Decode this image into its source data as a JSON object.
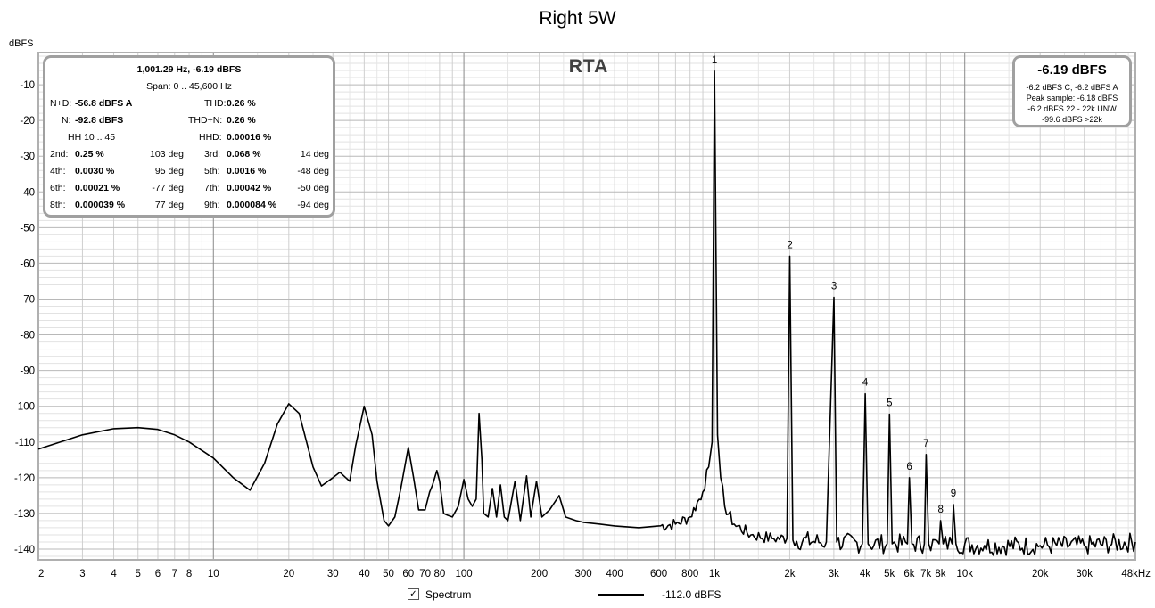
{
  "title": "Right 5W",
  "ylabel": "dBFS",
  "rta_label": "RTA",
  "legend": {
    "spectrum_label": "Spectrum",
    "spectrum_checked": true,
    "level_label": "-112.0 dBFS"
  },
  "info_left": {
    "header": "1,001.29 Hz, -6.19 dBFS",
    "span": "Span: 0 .. 45,600 Hz",
    "nd_label": "N+D:",
    "nd_value": "-56.8 dBFS A",
    "thd_label": "THD:",
    "thd_value": "0.26 %",
    "n_label": "N:",
    "n_value": "-92.8 dBFS",
    "thdn_label": "THD+N:",
    "thdn_value": "0.26 %",
    "hh_label": "HH 10 .. 45",
    "hhd_label": "HHD:",
    "hhd_value": "0.00016 %",
    "harmonics": [
      {
        "label": "2nd:",
        "value": "0.25 %",
        "phase": "103 deg"
      },
      {
        "label": "3rd:",
        "value": "0.068 %",
        "phase": "14 deg"
      },
      {
        "label": "4th:",
        "value": "0.0030 %",
        "phase": "95 deg"
      },
      {
        "label": "5th:",
        "value": "0.0016 %",
        "phase": "-48 deg"
      },
      {
        "label": "6th:",
        "value": "0.00021 %",
        "phase": "-77 deg"
      },
      {
        "label": "7th:",
        "value": "0.00042 %",
        "phase": "-50 deg"
      },
      {
        "label": "8th:",
        "value": "0.000039 %",
        "phase": "77 deg"
      },
      {
        "label": "9th:",
        "value": "0.000084 %",
        "phase": "-94 deg"
      }
    ]
  },
  "info_right": {
    "level": "-6.19 dBFS",
    "lines": [
      "-6.2 dBFS C, -6.2 dBFS A",
      "Peak sample: -6.18 dBFS",
      "-6.2 dBFS 22 - 22k UNW",
      "-99.6 dBFS >22k"
    ]
  },
  "colors": {
    "trace": "#000000",
    "grid": "#d0d0d0",
    "grid_major": "#a0a0a0",
    "frame": "#b0b0b0",
    "infobox_border": "#a0a0a0"
  },
  "chart_data": {
    "type": "line",
    "title": "Right 5W",
    "ylabel": "dBFS",
    "xscale": "log",
    "xlim": [
      2,
      48000
    ],
    "ylim": [
      -143,
      -1
    ],
    "grid": true,
    "yticks": [
      -10,
      -20,
      -30,
      -40,
      -50,
      -60,
      -70,
      -80,
      -90,
      -100,
      -110,
      -120,
      -130,
      -140
    ],
    "xticks": [
      {
        "v": 2,
        "label": "2"
      },
      {
        "v": 3,
        "label": "3"
      },
      {
        "v": 4,
        "label": "4"
      },
      {
        "v": 5,
        "label": "5"
      },
      {
        "v": 6,
        "label": "6"
      },
      {
        "v": 7,
        "label": "7"
      },
      {
        "v": 8,
        "label": "8"
      },
      {
        "v": 10,
        "label": "10"
      },
      {
        "v": 20,
        "label": "20"
      },
      {
        "v": 30,
        "label": "30"
      },
      {
        "v": 40,
        "label": "40"
      },
      {
        "v": 50,
        "label": "50"
      },
      {
        "v": 60,
        "label": "60"
      },
      {
        "v": 70,
        "label": "70"
      },
      {
        "v": 80,
        "label": "80"
      },
      {
        "v": 100,
        "label": "100"
      },
      {
        "v": 200,
        "label": "200"
      },
      {
        "v": 300,
        "label": "300"
      },
      {
        "v": 400,
        "label": "400"
      },
      {
        "v": 600,
        "label": "600"
      },
      {
        "v": 800,
        "label": "800"
      },
      {
        "v": 1000,
        "label": "1k"
      },
      {
        "v": 2000,
        "label": "2k"
      },
      {
        "v": 3000,
        "label": "3k"
      },
      {
        "v": 4000,
        "label": "4k"
      },
      {
        "v": 5000,
        "label": "5k"
      },
      {
        "v": 6000,
        "label": "6k"
      },
      {
        "v": 7000,
        "label": "7k"
      },
      {
        "v": 8000,
        "label": "8k"
      },
      {
        "v": 10000,
        "label": "10k"
      },
      {
        "v": 20000,
        "label": "20k"
      },
      {
        "v": 30000,
        "label": "30k"
      },
      {
        "v": 48000,
        "label": "48kHz"
      }
    ],
    "series": [
      {
        "points": [
          [
            2,
            -112
          ],
          [
            3,
            -108
          ],
          [
            4,
            -106.3
          ],
          [
            5,
            -106
          ],
          [
            6,
            -106.5
          ],
          [
            7,
            -108
          ],
          [
            8,
            -110
          ],
          [
            10,
            -114.5
          ],
          [
            12,
            -120
          ],
          [
            14,
            -123.5
          ],
          [
            16,
            -116
          ],
          [
            18,
            -105
          ],
          [
            20,
            -99.3
          ],
          [
            22,
            -102
          ],
          [
            25,
            -117
          ],
          [
            27,
            -122.3
          ],
          [
            30,
            -120
          ],
          [
            32,
            -118.5
          ],
          [
            35,
            -121
          ],
          [
            37,
            -111
          ],
          [
            40,
            -100
          ],
          [
            43,
            -108
          ],
          [
            45,
            -121
          ],
          [
            48,
            -132
          ],
          [
            50,
            -133.5
          ],
          [
            53,
            -131
          ],
          [
            56,
            -123
          ],
          [
            60,
            -111.5
          ],
          [
            63,
            -120
          ],
          [
            66,
            -129
          ],
          [
            70,
            -129
          ],
          [
            73,
            -124
          ],
          [
            75,
            -122
          ],
          [
            78,
            -118
          ],
          [
            80,
            -121
          ],
          [
            83,
            -130
          ],
          [
            86,
            -130.5
          ],
          [
            90,
            -131
          ],
          [
            95,
            -128
          ],
          [
            100,
            -120.5
          ],
          [
            104,
            -126
          ],
          [
            108,
            -128
          ],
          [
            112,
            -126
          ],
          [
            115,
            -102
          ],
          [
            118,
            -115
          ],
          [
            120,
            -130
          ],
          [
            125,
            -131
          ],
          [
            130,
            -123
          ],
          [
            135,
            -131
          ],
          [
            140,
            -122
          ],
          [
            145,
            -131
          ],
          [
            150,
            -132
          ],
          [
            160,
            -121
          ],
          [
            168,
            -132
          ],
          [
            178,
            -119.5
          ],
          [
            185,
            -131
          ],
          [
            195,
            -121
          ],
          [
            205,
            -131
          ],
          [
            220,
            -129
          ],
          [
            240,
            -125
          ],
          [
            255,
            -131
          ],
          [
            280,
            -132
          ],
          [
            300,
            -132.5
          ],
          [
            350,
            -133
          ],
          [
            400,
            -133.5
          ],
          [
            500,
            -134
          ],
          [
            600,
            -133.5
          ],
          [
            700,
            -133
          ],
          [
            800,
            -131
          ],
          [
            900,
            -124
          ],
          [
            950,
            -117
          ],
          [
            980,
            -110
          ],
          [
            1001.29,
            -6.19
          ],
          [
            1030,
            -108
          ],
          [
            1060,
            -120
          ],
          [
            1100,
            -128
          ],
          [
            1200,
            -133
          ],
          [
            1400,
            -136
          ],
          [
            1700,
            -137
          ],
          [
            1950,
            -137
          ],
          [
            2002,
            -58
          ],
          [
            2060,
            -137.5
          ],
          [
            2800,
            -138
          ],
          [
            3004,
            -69.5
          ],
          [
            3080,
            -138
          ],
          [
            3900,
            -138.5
          ],
          [
            4005,
            -96.5
          ],
          [
            4110,
            -138.5
          ],
          [
            4900,
            -138.5
          ],
          [
            5006,
            -102.2
          ],
          [
            5130,
            -138.5
          ],
          [
            5900,
            -138.5
          ],
          [
            6008,
            -120
          ],
          [
            6150,
            -138.5
          ],
          [
            6900,
            -138.5
          ],
          [
            7009,
            -113.5
          ],
          [
            7180,
            -138.5
          ],
          [
            7900,
            -138.5
          ],
          [
            8010,
            -132
          ],
          [
            8200,
            -138.5
          ],
          [
            8900,
            -138.5
          ],
          [
            9012,
            -127.5
          ],
          [
            9220,
            -138.5
          ],
          [
            12000,
            -139
          ],
          [
            20000,
            -139
          ],
          [
            30000,
            -139
          ],
          [
            48000,
            -138
          ]
        ]
      }
    ],
    "annotations": [
      {
        "label": "1",
        "x": 1001.29,
        "y": -6.19
      },
      {
        "label": "2",
        "x": 2002,
        "y": -58
      },
      {
        "label": "3",
        "x": 3004,
        "y": -69.5
      },
      {
        "label": "4",
        "x": 4005,
        "y": -96.5
      },
      {
        "label": "5",
        "x": 5006,
        "y": -102.2
      },
      {
        "label": "6",
        "x": 6008,
        "y": -120
      },
      {
        "label": "7",
        "x": 7009,
        "y": -113.5
      },
      {
        "label": "8",
        "x": 8010,
        "y": -132
      },
      {
        "label": "9",
        "x": 9012,
        "y": -127.5
      }
    ]
  }
}
